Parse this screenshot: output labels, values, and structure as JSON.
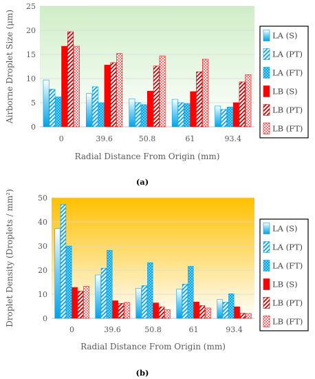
{
  "series_style": [
    {
      "color": "#00a2e8",
      "pattern": "solid-gradient"
    },
    {
      "color": "#00a2e8",
      "pattern": "diag-stripes"
    },
    {
      "color": "#00a2e8",
      "pattern": "checker"
    },
    {
      "color": "#ff0000",
      "pattern": "solid"
    },
    {
      "color": "#c00000",
      "pattern": "diag-stripes"
    },
    {
      "color": "#ff0000",
      "pattern": "dots"
    }
  ],
  "chart_data": [
    {
      "type": "bar",
      "caption": "(a)",
      "ylabel": "Airborne Droplet Size (μm)",
      "xlabel": "Radial Distance From Origin (mm)",
      "categories": [
        "0",
        "39.6",
        "50.8",
        "61",
        "93.4"
      ],
      "ylim": [
        0,
        25
      ],
      "yticks": [
        0,
        5,
        10,
        15,
        20,
        25
      ],
      "plot_background": [
        "#ffffff",
        "#cfeec7"
      ],
      "legend_position": "right",
      "series": [
        {
          "name": "LA (S)",
          "values": [
            9.7,
            6.9,
            5.8,
            5.7,
            4.3
          ]
        },
        {
          "name": "LA (PT)",
          "values": [
            7.8,
            8.3,
            5.0,
            5.0,
            3.6
          ]
        },
        {
          "name": "LA (FT)",
          "values": [
            6.2,
            5.0,
            4.6,
            4.8,
            4.1
          ]
        },
        {
          "name": "LB (S)",
          "values": [
            16.7,
            12.8,
            7.4,
            7.3,
            5.0
          ]
        },
        {
          "name": "LB (PT)",
          "values": [
            19.7,
            13.3,
            12.6,
            11.4,
            9.3
          ]
        },
        {
          "name": "LB (FT)",
          "values": [
            16.7,
            15.2,
            14.7,
            14.0,
            10.8
          ]
        }
      ]
    },
    {
      "type": "bar",
      "caption": "(b)",
      "ylabel": "Droplet Density (Droplets / mm²)",
      "xlabel": "Radial Distance From Origin (mm)",
      "categories": [
        "0",
        "39.6",
        "50.8",
        "61",
        "93.4"
      ],
      "ylim": [
        0,
        50
      ],
      "yticks": [
        0,
        10,
        20,
        30,
        40,
        50
      ],
      "plot_background": [
        "#ffffff",
        "#ffc000"
      ],
      "legend_position": "right",
      "series": [
        {
          "name": "LA (S)",
          "values": [
            37.2,
            18.0,
            12.5,
            12.1,
            7.8
          ]
        },
        {
          "name": "LA (PT)",
          "values": [
            47.2,
            20.8,
            13.6,
            14.2,
            6.7
          ]
        },
        {
          "name": "LA (FT)",
          "values": [
            30.0,
            28.2,
            23.1,
            21.6,
            10.2
          ]
        },
        {
          "name": "LB (S)",
          "values": [
            12.8,
            7.3,
            6.4,
            6.8,
            4.8
          ]
        },
        {
          "name": "LB (PT)",
          "values": [
            11.3,
            6.2,
            4.8,
            5.3,
            2.1
          ]
        },
        {
          "name": "LB (FT)",
          "values": [
            13.3,
            6.6,
            3.6,
            4.3,
            2.0
          ]
        }
      ]
    }
  ]
}
